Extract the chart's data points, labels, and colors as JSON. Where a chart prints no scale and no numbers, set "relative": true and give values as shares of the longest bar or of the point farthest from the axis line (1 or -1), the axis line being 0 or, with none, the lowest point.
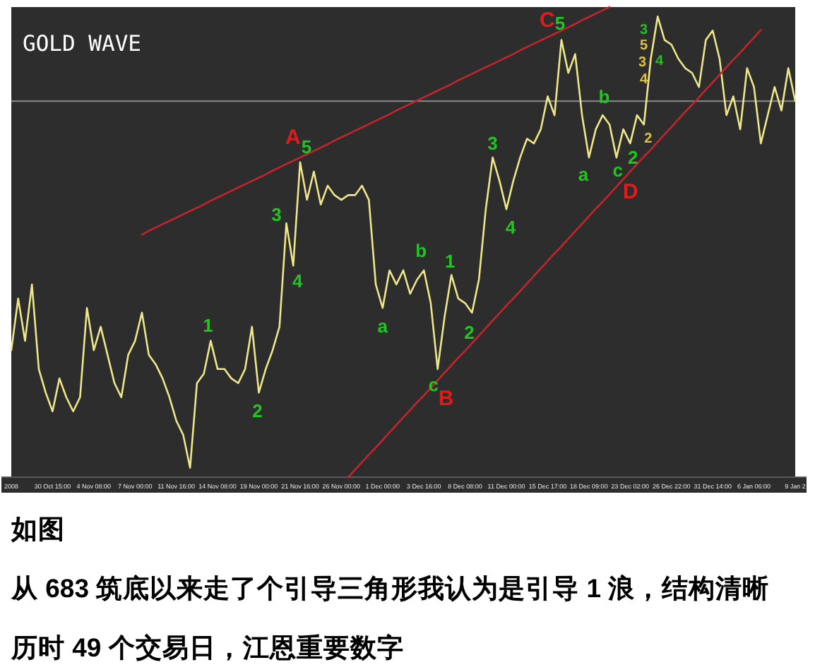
{
  "chart_data": {
    "type": "line",
    "title": "GOLD WAVE",
    "relative": true,
    "tick_labels": "x",
    "categories": [
      "2008",
      null,
      null,
      null,
      null,
      null,
      "30 Oct 15:00",
      null,
      null,
      null,
      null,
      null,
      "4 Nov 08:00",
      null,
      null,
      null,
      null,
      null,
      "7 Nov 00:00",
      null,
      null,
      null,
      null,
      null,
      "11 Nov 16:00",
      null,
      null,
      null,
      null,
      null,
      "14 Nov 08:00",
      null,
      null,
      null,
      null,
      null,
      "19 Nov 00:00",
      null,
      null,
      null,
      null,
      null,
      "21 Nov 16:00",
      null,
      null,
      null,
      null,
      null,
      "26 Nov 00:00",
      null,
      null,
      null,
      null,
      null,
      "1 Dec 00:00",
      null,
      null,
      null,
      null,
      null,
      "3 Dec 16:00",
      null,
      null,
      null,
      null,
      null,
      "8 Dec 08:00",
      null,
      null,
      null,
      null,
      null,
      "11 Dec 00:00",
      null,
      null,
      null,
      null,
      null,
      "15 Dec 17:00",
      null,
      null,
      null,
      null,
      null,
      "18 Dec 09:00",
      null,
      null,
      null,
      null,
      null,
      "23 Dec 02:00",
      null,
      null,
      null,
      null,
      null,
      "26 Dec 22:00",
      null,
      null,
      null,
      null,
      null,
      "31 Dec 14:00",
      null,
      null,
      null,
      null,
      null,
      "6 Jan 06:00",
      null,
      null,
      null,
      null,
      null,
      "9 Jan 2"
    ],
    "series": [
      {
        "color": "#eee68a",
        "values": [
          0.27,
          0.38,
          0.29,
          0.41,
          0.23,
          0.18,
          0.14,
          0.21,
          0.17,
          0.14,
          0.17,
          0.36,
          0.27,
          0.32,
          0.26,
          0.2,
          0.17,
          0.26,
          0.29,
          0.35,
          0.26,
          0.24,
          0.21,
          0.17,
          0.12,
          0.09,
          0.02,
          0.2,
          0.22,
          0.29,
          0.23,
          0.23,
          0.21,
          0.2,
          0.23,
          0.32,
          0.18,
          0.23,
          0.27,
          0.32,
          0.54,
          0.45,
          0.67,
          0.59,
          0.65,
          0.58,
          0.62,
          0.6,
          0.59,
          0.6,
          0.6,
          0.62,
          0.59,
          0.41,
          0.36,
          0.44,
          0.41,
          0.44,
          0.39,
          0.42,
          0.44,
          0.37,
          0.23,
          0.34,
          0.43,
          0.38,
          0.37,
          0.35,
          0.42,
          0.57,
          0.68,
          0.63,
          0.57,
          0.63,
          0.68,
          0.72,
          0.71,
          0.74,
          0.81,
          0.77,
          0.93,
          0.86,
          0.9,
          0.77,
          0.68,
          0.74,
          0.77,
          0.75,
          0.68,
          0.74,
          0.71,
          0.77,
          0.75,
          0.89,
          0.98,
          0.93,
          0.92,
          0.89,
          0.87,
          0.86,
          0.83,
          0.93,
          0.95,
          0.89,
          0.77,
          0.81,
          0.74,
          0.87,
          0.83,
          0.71,
          0.77,
          0.83,
          0.78,
          0.87,
          0.8
        ]
      },
      {
        "type": "line",
        "color": "#c0262b",
        "values": [
          null,
          null,
          null,
          null,
          null,
          null,
          null,
          null,
          null,
          null,
          null,
          null,
          null,
          null,
          null,
          null,
          null,
          null,
          null,
          0.516,
          0.524,
          0.531,
          0.538,
          0.545,
          0.552,
          0.559,
          0.566,
          0.573,
          0.58,
          0.588,
          0.595,
          0.602,
          0.609,
          0.616,
          0.623,
          0.63,
          0.637,
          0.644,
          0.652,
          0.659,
          0.666,
          0.673,
          0.68,
          0.687,
          0.694,
          0.701,
          0.708,
          0.716,
          0.723,
          0.73,
          0.737,
          0.744,
          0.751,
          0.758,
          0.765,
          0.772,
          0.78,
          0.787,
          0.794,
          0.801,
          0.808,
          0.815,
          0.822,
          0.829,
          0.836,
          0.844,
          0.851,
          0.858,
          0.865,
          0.872,
          0.879,
          0.886,
          0.893,
          0.9,
          0.908,
          0.915,
          0.922,
          0.929,
          0.936,
          0.943,
          0.95,
          0.957,
          0.964,
          0.972,
          0.979,
          0.986,
          0.993,
          1.0,
          null,
          null,
          null,
          null,
          null,
          null,
          null,
          null,
          null,
          null,
          null,
          null,
          null,
          null,
          null,
          null,
          null,
          null,
          null,
          null,
          null,
          null,
          null,
          null,
          null,
          null,
          null
        ]
      },
      {
        "type": "line",
        "color": "#c0262b",
        "values": [
          null,
          null,
          null,
          null,
          null,
          null,
          null,
          null,
          null,
          null,
          null,
          null,
          null,
          null,
          null,
          null,
          null,
          null,
          null,
          null,
          null,
          null,
          null,
          null,
          null,
          null,
          null,
          null,
          null,
          null,
          null,
          null,
          null,
          null,
          null,
          null,
          null,
          null,
          null,
          null,
          null,
          null,
          null,
          null,
          null,
          null,
          null,
          null,
          null,
          0,
          0.016,
          0.032,
          0.048,
          0.063,
          0.079,
          0.095,
          0.111,
          0.127,
          0.143,
          0.159,
          0.174,
          0.19,
          0.206,
          0.222,
          0.238,
          0.254,
          0.269,
          0.285,
          0.301,
          0.317,
          0.333,
          0.349,
          0.365,
          0.38,
          0.396,
          0.412,
          0.428,
          0.444,
          0.46,
          0.476,
          0.491,
          0.507,
          0.523,
          0.539,
          0.555,
          0.571,
          0.586,
          0.602,
          0.618,
          0.634,
          0.65,
          0.666,
          0.682,
          0.697,
          0.713,
          0.729,
          0.745,
          0.761,
          0.777,
          0.792,
          0.808,
          0.824,
          0.84,
          0.856,
          0.872,
          0.888,
          0.903,
          0.919,
          0.935,
          0.951,
          null,
          null,
          null,
          null,
          null
        ]
      }
    ],
    "ref_lines": [
      {
        "axis": "y",
        "value": 0.8,
        "color": "#8a8a8a"
      }
    ],
    "annotations": [
      "1",
      "2",
      "3",
      "4",
      "A",
      "5",
      "a",
      "b",
      "c",
      "B",
      "1",
      "2",
      "3",
      "4",
      "C",
      "5",
      "a",
      "b",
      "c",
      "D",
      "2",
      "2",
      "4",
      "3",
      "4",
      "5",
      "3",
      "如图",
      "从 683 筑底以来走了个引导三角形我认为是引导 1 浪，结构清晰",
      "历时 49 个交易日，江恩重要数字"
    ]
  }
}
